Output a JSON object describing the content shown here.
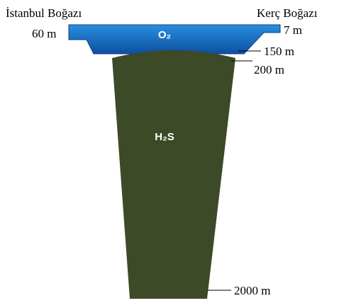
{
  "labels": {
    "left_strait": "İstanbul Boğazı",
    "right_strait": "Kerç Boğazı",
    "left_depth": "60 m",
    "right_depth": "7 m",
    "oxygen_depth": "150 m",
    "h2s_top": "200 m",
    "bottom_depth": "2000 m",
    "oxygen": "O₂",
    "h2s": "H₂S"
  }
}
